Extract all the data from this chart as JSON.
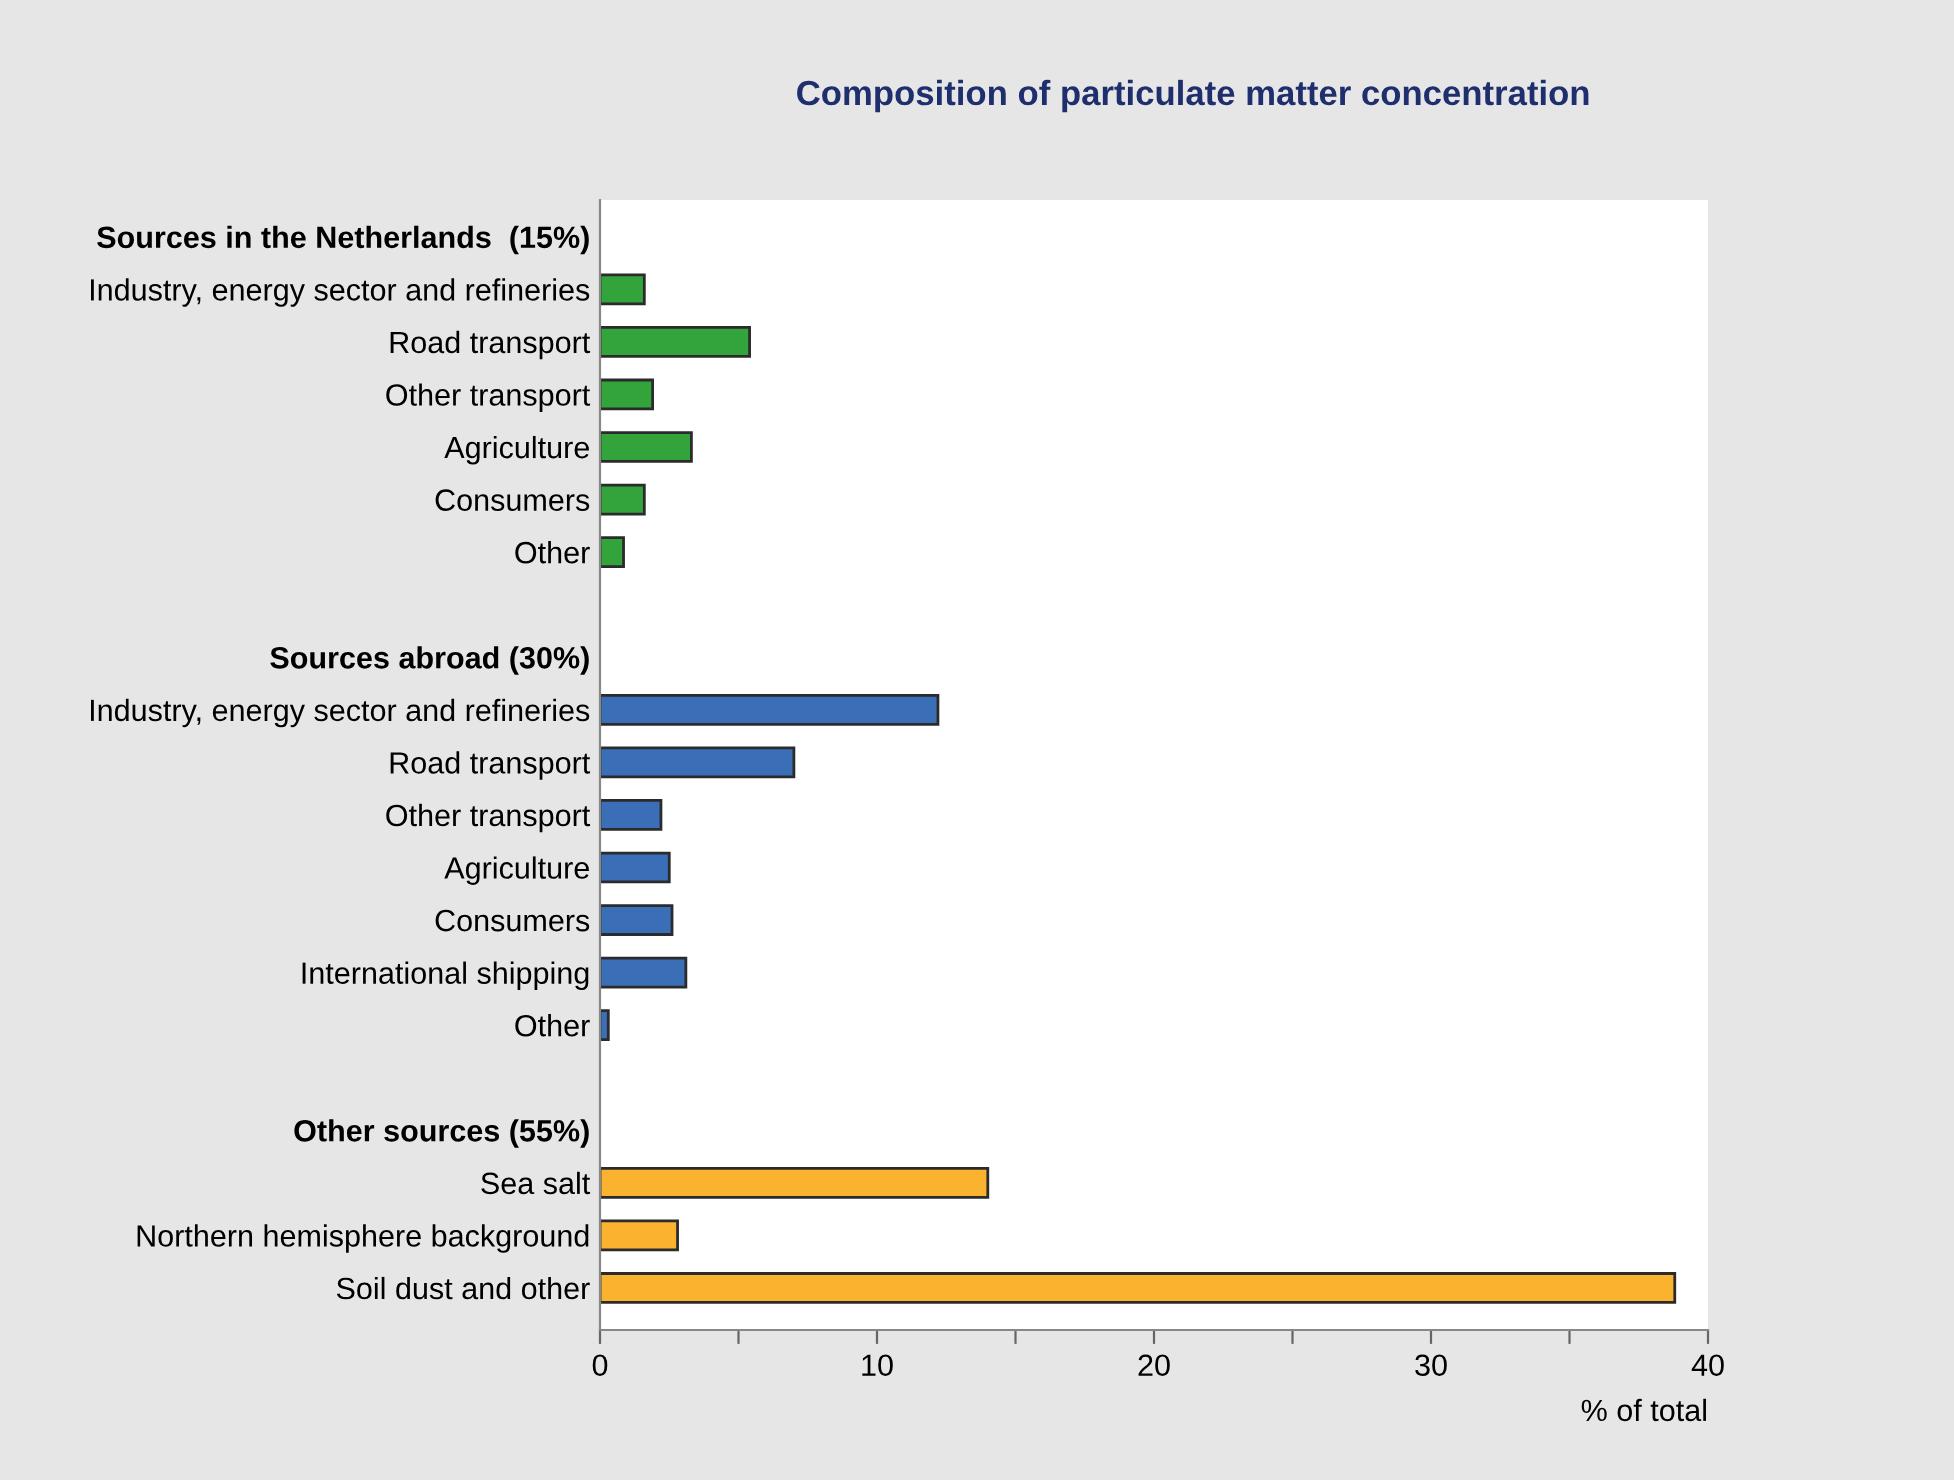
{
  "chart_data": {
    "type": "bar",
    "orientation": "horizontal",
    "title": "Composition of particulate matter concentration",
    "xlabel": "% of total",
    "categories": [
      "Sources in the Netherlands  (15%)",
      "Industry, energy sector and refineries",
      "Road transport",
      "Other transport",
      "Agriculture",
      "Consumers",
      "Other",
      null,
      "Sources abroad (30%)",
      "Industry, energy sector and refineries",
      "Road transport",
      "Other transport",
      "Agriculture",
      "Consumers",
      "International shipping",
      "Other",
      null,
      "Other sources (55%)",
      "Sea salt",
      "Northern hemisphere background",
      "Soil dust and other"
    ],
    "values": [
      null,
      1.6,
      5.4,
      1.9,
      3.3,
      1.6,
      0.85,
      null,
      null,
      12.2,
      7.0,
      2.2,
      2.5,
      2.6,
      3.1,
      0.3,
      null,
      null,
      14.0,
      2.8,
      38.8
    ],
    "colors": [
      null,
      "#33a33c",
      "#33a33c",
      "#33a33c",
      "#33a33c",
      "#33a33c",
      "#33a33c",
      null,
      null,
      "#3a6fb8",
      "#3a6fb8",
      "#3a6fb8",
      "#3a6fb8",
      "#3a6fb8",
      "#3a6fb8",
      "#3a6fb8",
      null,
      null,
      "#fbb22e",
      "#fbb22e",
      "#fbb22e"
    ],
    "xlim": [
      0,
      40
    ],
    "xticks": [
      0,
      {
        "value": 5,
        "label": null
      },
      10,
      {
        "value": 15,
        "label": null
      },
      20,
      {
        "value": 25,
        "label": null
      },
      30,
      {
        "value": 35,
        "label": null
      },
      40
    ],
    "grid": false,
    "legend": false
  }
}
